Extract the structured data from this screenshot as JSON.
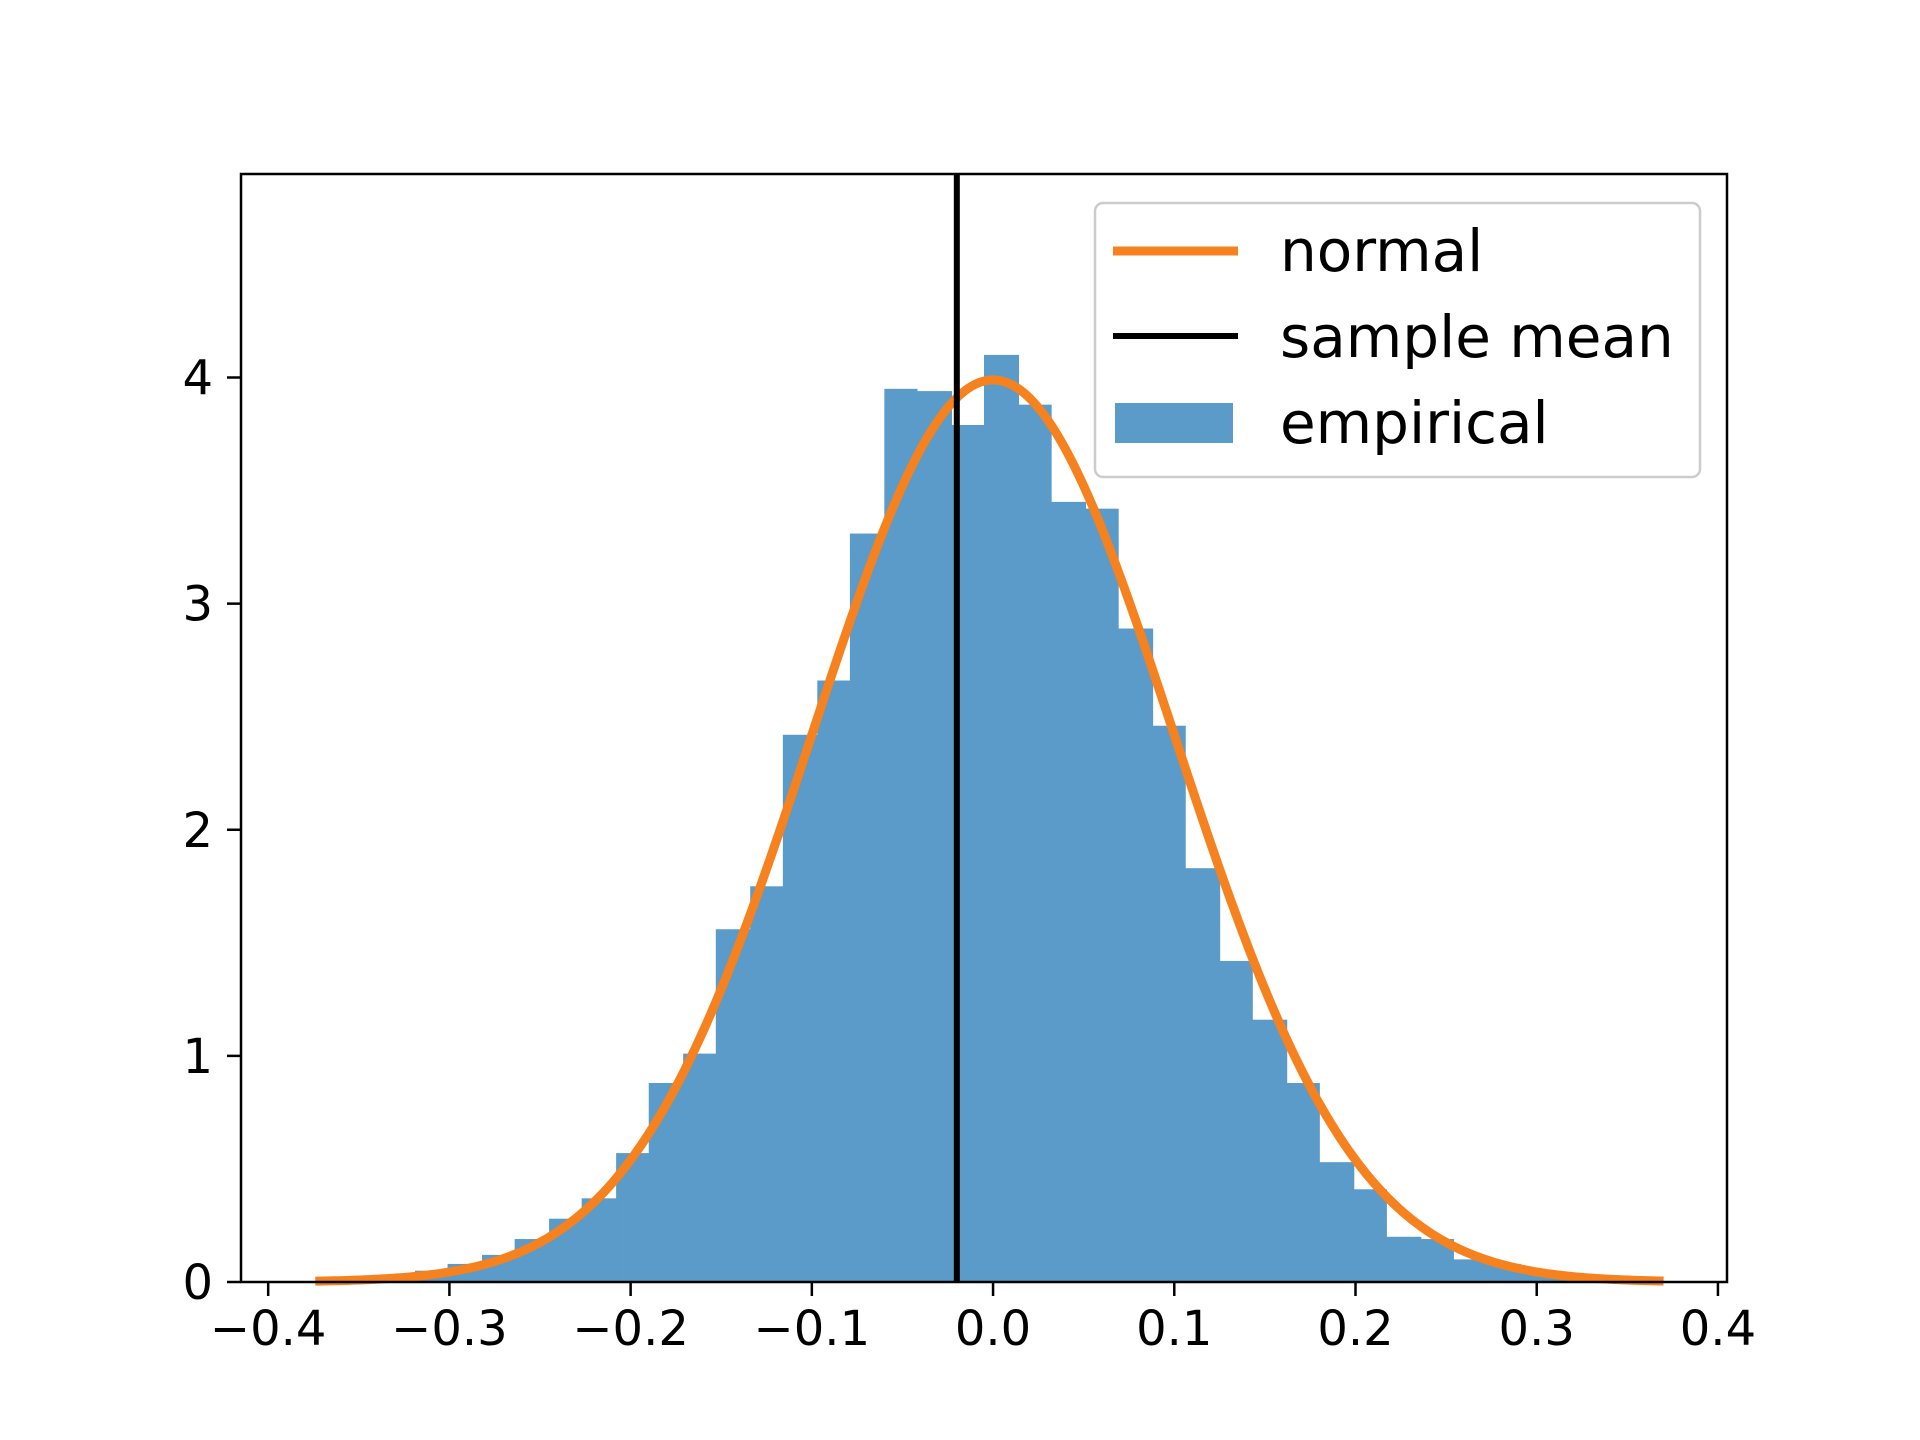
{
  "chart_data": {
    "type": "histogram",
    "title": "",
    "xlabel": "",
    "ylabel": "",
    "xlim": [
      -0.415,
      0.405
    ],
    "ylim": [
      0,
      4.9
    ],
    "grid": false,
    "x_ticks": [
      -0.4,
      -0.3,
      -0.2,
      -0.1,
      0.0,
      0.1,
      0.2,
      0.3,
      0.4
    ],
    "x_tick_labels": [
      "−0.4",
      "−0.3",
      "−0.2",
      "−0.1",
      "0.0",
      "0.1",
      "0.2",
      "0.3",
      "0.4"
    ],
    "y_ticks": [
      0,
      1,
      2,
      3,
      4
    ],
    "y_tick_labels": [
      "0",
      "1",
      "2",
      "3",
      "4"
    ],
    "legend_position": "top-right",
    "histogram": {
      "name": "empirical",
      "color": "#5b9bc9",
      "bin_edges": [
        -0.374,
        -0.356,
        -0.338,
        -0.319,
        -0.301,
        -0.282,
        -0.264,
        -0.245,
        -0.227,
        -0.208,
        -0.19,
        -0.171,
        -0.153,
        -0.134,
        -0.116,
        -0.097,
        -0.079,
        -0.06,
        -0.042,
        -0.023,
        -0.005,
        0.014,
        0.032,
        0.051,
        0.069,
        0.088,
        0.106,
        0.125,
        0.143,
        0.162,
        0.18,
        0.199,
        0.217,
        0.236,
        0.254,
        0.273,
        0.291,
        0.31,
        0.328,
        0.347,
        0.365
      ],
      "densities": [
        0.01,
        0.02,
        0.03,
        0.05,
        0.08,
        0.12,
        0.19,
        0.28,
        0.37,
        0.57,
        0.88,
        1.01,
        1.56,
        1.75,
        2.42,
        2.66,
        3.31,
        3.95,
        3.94,
        3.79,
        4.1,
        3.88,
        3.45,
        3.42,
        2.89,
        2.46,
        1.83,
        1.42,
        1.16,
        0.88,
        0.53,
        0.41,
        0.2,
        0.19,
        0.1,
        0.08,
        0.05,
        0.03,
        0.02,
        0.01
      ]
    },
    "normal": {
      "name": "normal",
      "color": "#f5811f",
      "mean": 0.0,
      "std": 0.1,
      "x_range": [
        -0.374,
        0.37
      ]
    },
    "sample_mean": {
      "name": "sample mean",
      "color": "#000000",
      "x": -0.02
    },
    "legend": [
      "normal",
      "sample mean",
      "empirical"
    ]
  }
}
